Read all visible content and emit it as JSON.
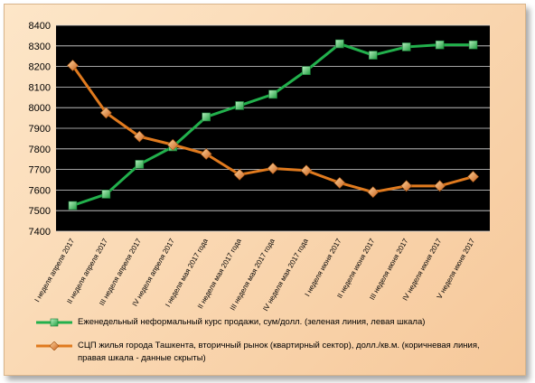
{
  "chart_data": {
    "type": "line",
    "categories": [
      "I неделя апреля 2017",
      "II неделя апреля 2017",
      "III неделя апреля 2017",
      "IV неделя апреля 2017",
      "I неделя мая 2017 года",
      "II неделя мая 2017 года",
      "III неделя мая 2017 года",
      "IV неделя мая 2017 года",
      "I неделя июня 2017",
      "II неделя июня 2017",
      "III неделя июня 2017",
      "IV неделя июня 2017",
      "V неделя июня 2017"
    ],
    "ylim": [
      7400,
      8400
    ],
    "yticks": [
      7400,
      7500,
      7600,
      7700,
      7800,
      7900,
      8000,
      8100,
      8200,
      8300,
      8400
    ],
    "grid": true,
    "legend_position": "bottom",
    "plot_background": "#000000",
    "series": [
      {
        "name": "Еженедельный неформальный курс продажи, сум/долл. (зеленая линия, левая шкала)",
        "color": "#22b04c",
        "marker": "square",
        "values": [
          7525,
          7580,
          7725,
          7810,
          7955,
          8010,
          8065,
          8180,
          8310,
          8255,
          8295,
          8305,
          8305
        ]
      },
      {
        "name": "СЦП жилья города Ташкента, вторичный рынок (квартирный сектор), долл./кв.м. (коричневая линия, правая шкала - данные скрыты)",
        "color": "#e07a1e",
        "marker": "diamond",
        "values": [
          8205,
          7975,
          7860,
          7820,
          7775,
          7675,
          7705,
          7695,
          7635,
          7590,
          7620,
          7620,
          7665
        ]
      }
    ]
  }
}
